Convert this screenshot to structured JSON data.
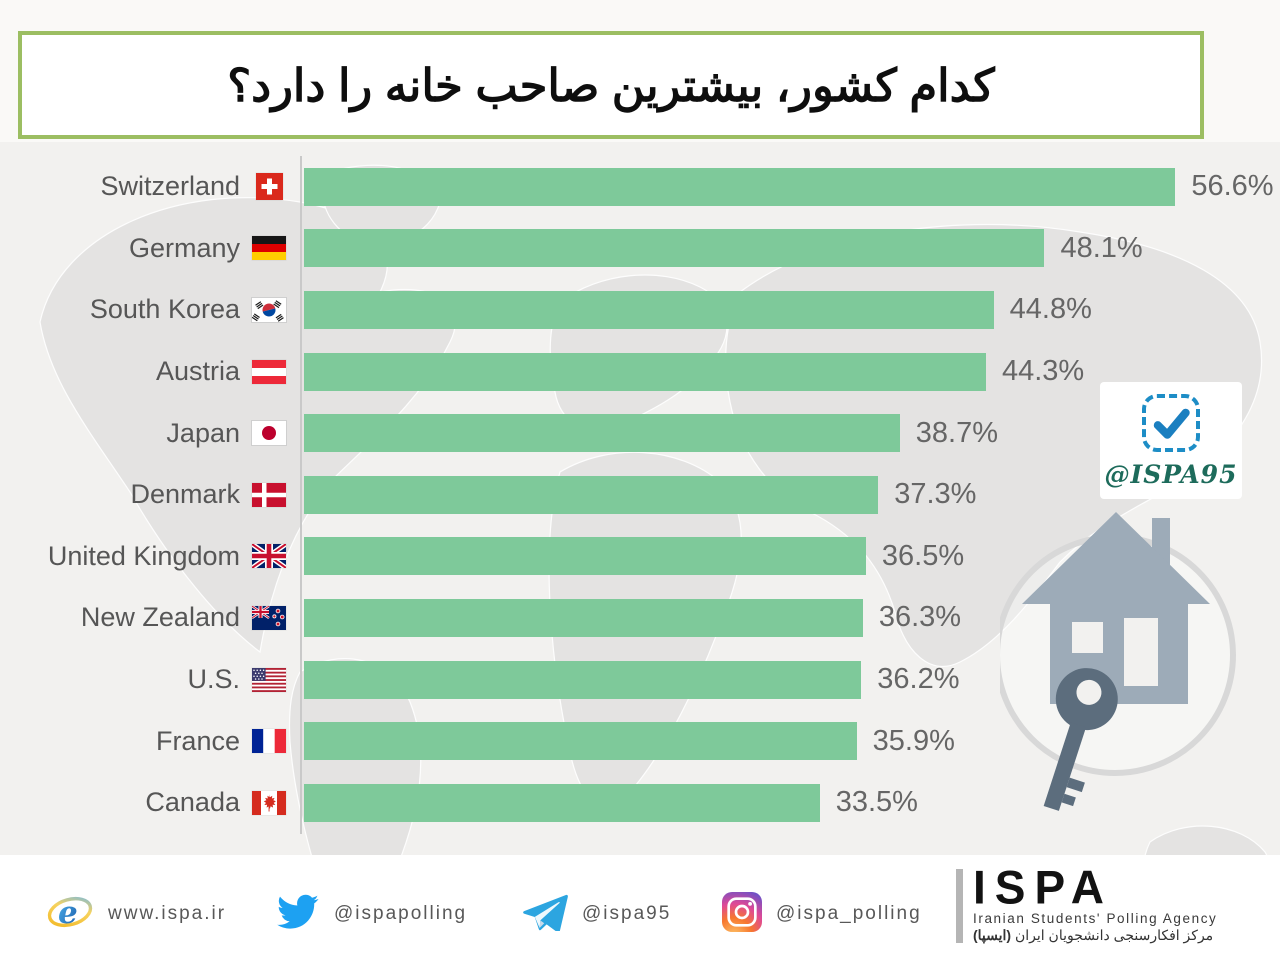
{
  "title": "کدام کشور، بیشترین صاحب خانه را دارد؟",
  "chart_data": {
    "type": "bar",
    "orientation": "horizontal",
    "title": "کدام کشور، بیشترین صاحب خانه را دارد؟",
    "categories": [
      "Switzerland",
      "Germany",
      "South Korea",
      "Austria",
      "Japan",
      "Denmark",
      "United Kingdom",
      "New Zealand",
      "U.S.",
      "France",
      "Canada"
    ],
    "values": [
      56.6,
      48.1,
      44.8,
      44.3,
      38.7,
      37.3,
      36.5,
      36.3,
      36.2,
      35.9,
      33.5
    ],
    "value_labels": [
      "56.6%",
      "48.1%",
      "44.8%",
      "44.3%",
      "38.7%",
      "37.3%",
      "36.5%",
      "36.3%",
      "36.2%",
      "35.9%",
      "33.5%"
    ],
    "xlim": [
      0,
      63.4
    ],
    "bar_color": "#7ec99a",
    "grid": false,
    "legend": false,
    "flag_icons": [
      "flag-switzerland-icon",
      "flag-germany-icon",
      "flag-south-korea-icon",
      "flag-austria-icon",
      "flag-japan-icon",
      "flag-denmark-icon",
      "flag-united-kingdom-icon",
      "flag-new-zealand-icon",
      "flag-us-icon",
      "flag-france-icon",
      "flag-canada-icon"
    ]
  },
  "watermark": {
    "handle": "@ISPA95",
    "check_icon": "checkmark-badge-icon",
    "graphic_icons": [
      "house-icon",
      "key-icon"
    ]
  },
  "footer": {
    "website": "www.ispa.ir",
    "twitter": "@ispapolling",
    "telegram": "@ispa95",
    "instagram": "@ispa_polling",
    "logo_text": "ISPA",
    "logo_subtitle_en": "Iranian Students' Polling Agency",
    "logo_subtitle_fa": "مرکز افکارسنجی دانشجویان ایران",
    "logo_subtitle_fa_bold": "(ایسپا)"
  },
  "colors": {
    "bar_green": "#7ec99a",
    "title_border_green": "#9cbe62",
    "chart_background": "#f2f1ef",
    "map_gray": "#e3e2e1",
    "badge_blue": "#1d8dc6",
    "handle_green": "#1d6b5b",
    "label_gray": "#565656",
    "value_gray": "#666666"
  }
}
